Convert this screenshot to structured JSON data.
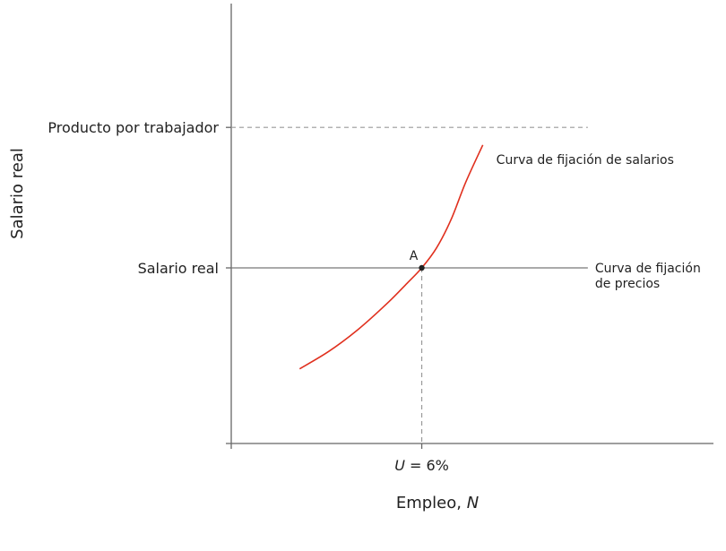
{
  "chart_data": {
    "type": "line",
    "xlabel": "Empleo, N",
    "ylabel": "Salario real",
    "xlim": [
      0,
      100
    ],
    "ylim": [
      0,
      100
    ],
    "y_ticks": [
      {
        "label": "Producto por trabajador",
        "value": 72,
        "style": "dashed"
      },
      {
        "label": "Salario real",
        "value": 40,
        "style": "solid"
      }
    ],
    "x_ticks": [
      {
        "label": "U = 6%",
        "value": 39
      }
    ],
    "series": [
      {
        "name": "Curva de fijación de salarios",
        "color": "#e0301e",
        "x": [
          14,
          20,
          26,
          32,
          36,
          39,
          42,
          45,
          48,
          51.5
        ],
        "y": [
          17,
          21,
          26,
          32,
          36.5,
          40,
          44.5,
          51,
          59.5,
          68
        ]
      },
      {
        "name": "Curva de fijación de precios",
        "color": "#777777",
        "x": [
          0,
          73
        ],
        "y": [
          40,
          40
        ]
      }
    ],
    "horizontal_reference": {
      "label": "Producto por trabajador",
      "y": 72,
      "x_end": 73
    },
    "point": {
      "label": "A",
      "x": 39,
      "y": 40
    },
    "curve_labels": {
      "wage": "Curva de fijación de salarios",
      "price_line1": "Curva de fijación",
      "price_line2": "de precios"
    },
    "grid": false,
    "legend": "none"
  }
}
